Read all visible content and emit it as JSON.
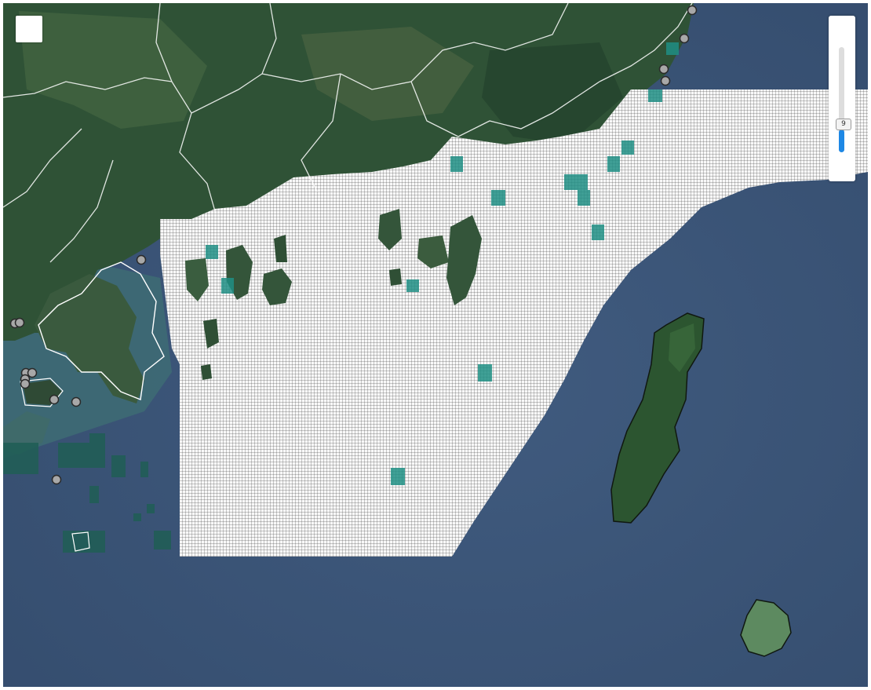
{
  "map": {
    "grid_fill": "#f8f8f8",
    "grid_line": "#303030",
    "land": "#2e4f36",
    "sea": "#3c5678",
    "highlight": "#1f8f84",
    "boundary": "#ffffff"
  },
  "zoom": {
    "level": "9",
    "fill_fraction": 0.22,
    "accent": "#1e88e5"
  },
  "tool": {
    "icon": "blank-square-icon"
  }
}
